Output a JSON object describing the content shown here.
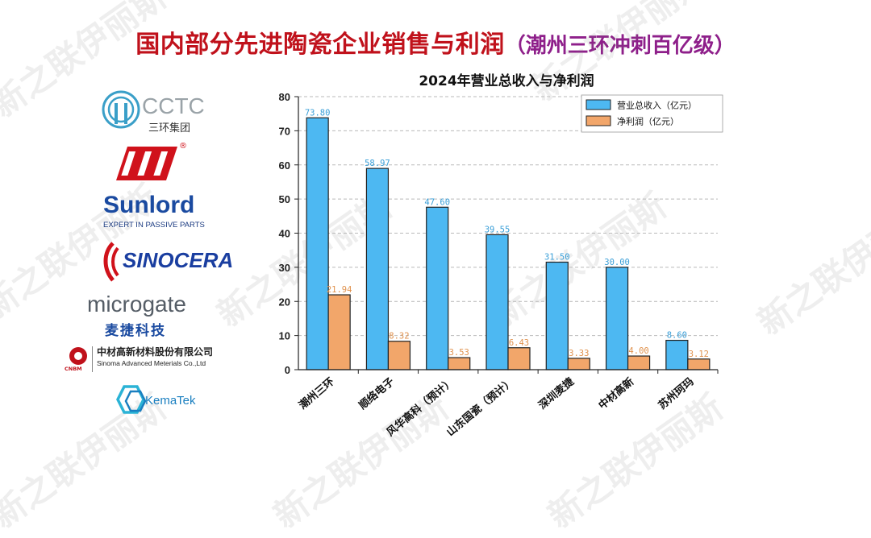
{
  "slide": {
    "title_main": "国内部分先进陶瓷企业销售与利润",
    "title_sub": "（潮州三环冲刺百亿级）",
    "watermark": "新之联伊丽斯"
  },
  "logos": [
    {
      "name": "cctc-logo",
      "text": "CCTC",
      "subtext": "三环集团"
    },
    {
      "name": "fenghua-logo",
      "text": "®"
    },
    {
      "name": "sunlord-logo",
      "text": "Sunlord",
      "subtext": "EXPERT IN PASSIVE PARTS"
    },
    {
      "name": "sinocera-logo",
      "text": "SINOCERA"
    },
    {
      "name": "microgate-logo",
      "text": "microgate",
      "subtext": "麦捷科技"
    },
    {
      "name": "cnbm-logo",
      "text": "中材高新材料股份有限公司",
      "subtext": "Sinoma Advanced Meterials Co.,Ltd",
      "badge": "CNBM"
    },
    {
      "name": "kematek-logo",
      "text": "KemaTek"
    }
  ],
  "colors": {
    "title_red": "#c0111b",
    "title_purple": "#8e1f8a",
    "revenue": "#4db8f2",
    "profit": "#f2a66a",
    "revenue_label": "#3a9fd8",
    "profit_label": "#e0924e"
  },
  "chart_data": {
    "type": "bar",
    "title": "2024年营业总收入与净利润",
    "categories": [
      "潮州三环",
      "顺络电子",
      "风华高科（预计）",
      "山东国瓷（预计）",
      "深圳麦捷",
      "中材高新",
      "苏州珂玛"
    ],
    "series": [
      {
        "name": "营业总收入（亿元）",
        "values": [
          73.8,
          58.97,
          47.6,
          39.55,
          31.5,
          30.0,
          8.6
        ],
        "labels": [
          "73.80",
          "58.97",
          "47.60",
          "39.55",
          "31.50",
          "30.00",
          "8.60"
        ]
      },
      {
        "name": "净利润（亿元）",
        "values": [
          21.94,
          8.32,
          3.53,
          6.43,
          3.33,
          4.0,
          3.12
        ],
        "labels": [
          "21.94",
          "8.32",
          "3.53",
          "6.43",
          "3.33",
          "4.00",
          "3.12"
        ]
      }
    ],
    "ylim": [
      0,
      80
    ],
    "yticks": [
      "0",
      "10",
      "20",
      "30",
      "40",
      "50",
      "60",
      "70",
      "80"
    ],
    "grid": true,
    "legend_position": "top-right",
    "xlabel": "",
    "ylabel": ""
  }
}
